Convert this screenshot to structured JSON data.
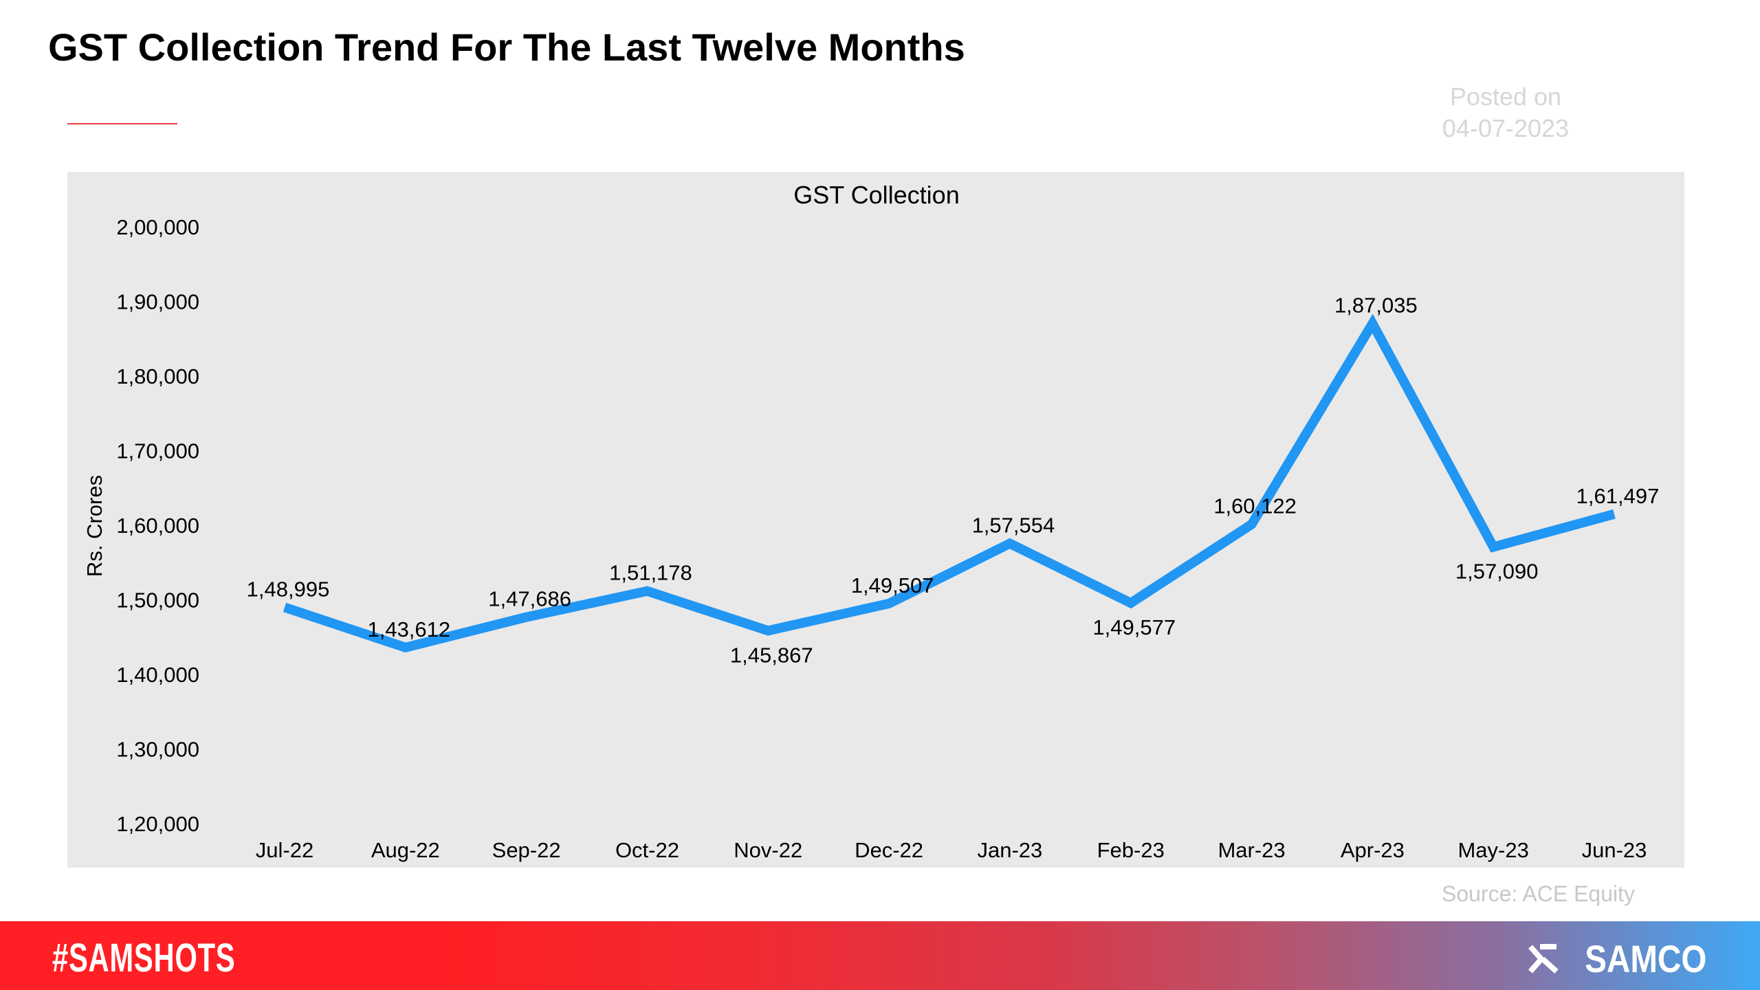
{
  "header": {
    "title": "GST Collection Trend For The Last Twelve Months",
    "posted_label": "Posted on",
    "posted_date": "04-07-2023"
  },
  "chart_data": {
    "type": "line",
    "title": "GST Collection",
    "xlabel": "",
    "ylabel": "Rs. Crores",
    "ylim": [
      120000,
      200000
    ],
    "yticks": [
      200000,
      190000,
      180000,
      170000,
      160000,
      150000,
      140000,
      130000,
      120000
    ],
    "ytick_labels": [
      "2,00,000",
      "1,90,000",
      "1,80,000",
      "1,70,000",
      "1,60,000",
      "1,50,000",
      "1,40,000",
      "1,30,000",
      "1,20,000"
    ],
    "categories": [
      "Jul-22",
      "Aug-22",
      "Sep-22",
      "Oct-22",
      "Nov-22",
      "Dec-22",
      "Jan-23",
      "Feb-23",
      "Mar-23",
      "Apr-23",
      "May-23",
      "Jun-23"
    ],
    "values": [
      148995,
      143612,
      147686,
      151178,
      145867,
      149507,
      157554,
      149577,
      160122,
      187035,
      157090,
      161497
    ],
    "data_labels": [
      "1,48,995",
      "1,43,612",
      "1,47,686",
      "1,51,178",
      "1,45,867",
      "1,49,507",
      "1,57,554",
      "1,49,577",
      "1,60,122",
      "1,87,035",
      "1,57,090",
      "1,61,497"
    ],
    "label_positions": [
      "above",
      "above",
      "above",
      "above",
      "below",
      "above",
      "above",
      "below",
      "above",
      "above",
      "below",
      "above"
    ],
    "grid": false,
    "line_color": "#2196f3",
    "background": "#e9e9e9"
  },
  "source": "Source: ACE Equity",
  "footer": {
    "hashtag": "#SAMSHOTS",
    "brand": "SAMCO",
    "brand_color_left": "#ff1f24",
    "brand_color_right": "#3fa9f5"
  }
}
